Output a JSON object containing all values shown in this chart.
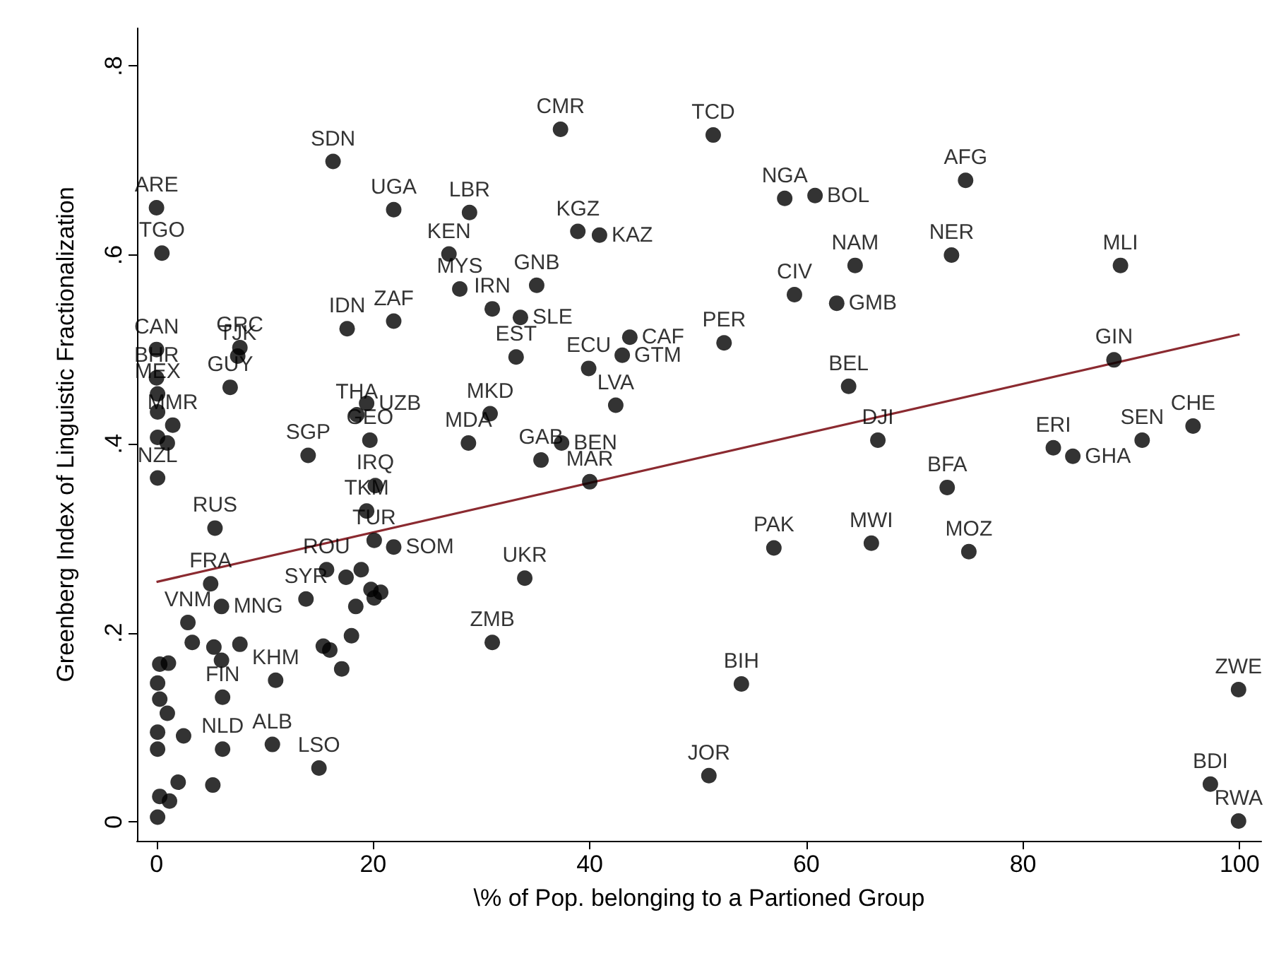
{
  "chart_data": {
    "type": "scatter",
    "xlabel": "\\% of Pop. belonging to a Partioned Group",
    "ylabel": "Greenberg Index of Linguistic Fractionalization",
    "xlim": [
      -1.8,
      102
    ],
    "ylim": [
      -0.02,
      0.84
    ],
    "xticks": [
      0,
      20,
      40,
      60,
      80,
      100
    ],
    "yticks": [
      {
        "value": 0,
        "label": "0"
      },
      {
        "value": 0.2,
        "label": ".2"
      },
      {
        "value": 0.4,
        "label": ".4"
      },
      {
        "value": 0.6,
        "label": ".6"
      },
      {
        "value": 0.8,
        "label": ".8"
      }
    ],
    "series": [
      {
        "marker": "circle",
        "color": "#000000",
        "x": [
          37.3,
          51.4,
          16.3,
          21.9,
          28.9,
          27.0,
          38.9,
          40.9,
          28.0,
          35.1,
          31.0,
          33.6,
          17.6,
          21.9,
          33.2,
          43.7,
          43.0,
          39.9,
          42.4,
          30.8,
          28.8,
          37.4,
          35.5,
          40.0,
          34.0,
          31.0,
          54.0,
          51.0,
          52.4,
          58.0,
          60.8,
          58.9,
          62.8,
          64.5,
          74.7,
          73.4,
          89.0,
          88.4,
          63.9,
          66.6,
          73.0,
          82.8,
          84.6,
          91.0,
          95.7,
          57.0,
          66.0,
          75.0,
          99.9,
          97.3,
          99.9,
          0.0,
          0.5,
          0.0,
          7.7,
          7.5,
          6.8,
          0.0,
          0.1,
          1.5,
          0.1,
          0.1,
          1.0,
          0.1,
          14.0,
          5.4,
          5.0,
          6.0,
          2.9,
          3.3,
          5.3,
          7.7,
          6.0,
          11.0,
          6.1,
          10.7,
          6.1,
          15.0,
          5.2,
          1.1,
          0.3,
          0.1,
          0.3,
          1.0,
          0.1,
          2.5,
          0.1,
          2.0,
          0.3,
          0.1,
          1.2,
          19.4,
          18.5,
          19.7,
          20.2,
          19.4,
          20.1,
          21.9,
          15.7,
          17.5,
          18.9,
          19.8,
          20.7,
          20.1,
          13.8,
          18.4,
          18.0,
          16.0,
          15.4,
          17.1
        ],
        "values": [
          0.733,
          0.727,
          0.699,
          0.648,
          0.645,
          0.601,
          0.625,
          0.621,
          0.564,
          0.568,
          0.543,
          0.534,
          0.522,
          0.53,
          0.492,
          0.513,
          0.494,
          0.48,
          0.441,
          0.432,
          0.401,
          0.401,
          0.383,
          0.36,
          0.258,
          0.19,
          0.146,
          0.049,
          0.507,
          0.66,
          0.663,
          0.558,
          0.549,
          0.589,
          0.679,
          0.6,
          0.589,
          0.489,
          0.461,
          0.404,
          0.354,
          0.396,
          0.387,
          0.404,
          0.419,
          0.29,
          0.295,
          0.286,
          0.14,
          0.04,
          0.001,
          0.65,
          0.602,
          0.5,
          0.502,
          0.493,
          0.46,
          0.47,
          0.453,
          0.42,
          0.434,
          0.407,
          0.401,
          0.364,
          0.388,
          0.311,
          0.252,
          0.228,
          0.211,
          0.19,
          0.185,
          0.188,
          0.171,
          0.15,
          0.132,
          0.082,
          0.077,
          0.057,
          0.039,
          0.168,
          0.167,
          0.147,
          0.13,
          0.115,
          0.095,
          0.091,
          0.077,
          0.042,
          0.027,
          0.005,
          0.022,
          0.443,
          0.431,
          0.404,
          0.356,
          0.329,
          0.298,
          0.291,
          0.267,
          0.259,
          0.267,
          0.246,
          0.243,
          0.237,
          0.236,
          0.228,
          0.197,
          0.182,
          0.186,
          0.162
        ],
        "value_labels": [
          "CMR",
          "TCD",
          "SDN",
          "UGA",
          "LBR",
          "KEN",
          "KGZ",
          "KAZ",
          "MYS",
          "GNB",
          "IRN",
          "SLE",
          "IDN",
          "ZAF",
          "EST",
          "CAF",
          "GTM",
          "ECU",
          "LVA",
          "MKD",
          "MDA",
          "BEN",
          "GAB",
          "MAR",
          "UKR",
          "ZMB",
          "BIH",
          "JOR",
          "PER",
          "NGA",
          "BOL",
          "CIV",
          "GMB",
          "NAM",
          "AFG",
          "NER",
          "MLI",
          "GIN",
          "BEL",
          "DJI",
          "BFA",
          "ERI",
          "GHA",
          "SEN",
          "CHE",
          "PAK",
          "MWI",
          "MOZ",
          "ZWE",
          "BDI",
          "RWA",
          "ARE",
          "TGO",
          "CAN",
          "GRC",
          "TJK",
          "GUY",
          "BHR",
          "MEX",
          "MMR",
          null,
          null,
          null,
          "NZL",
          "SGP",
          "RUS",
          "FRA",
          "MNG",
          "VNM",
          null,
          null,
          null,
          null,
          "KHM",
          "FIN",
          "ALB",
          "NLD",
          "LSO",
          null,
          null,
          null,
          null,
          null,
          null,
          null,
          null,
          null,
          null,
          null,
          null,
          null,
          "UZB",
          "THA",
          "GEO",
          "IRQ",
          "TKM",
          "TUR",
          "SOM",
          "ROU",
          null,
          null,
          null,
          null,
          null,
          "SYR",
          null,
          null,
          null,
          null,
          null
        ]
      },
      {
        "type": "line",
        "marker": "none",
        "color": "#8b2a30",
        "x": [
          0,
          100
        ],
        "values": [
          0.254,
          0.516
        ]
      }
    ]
  }
}
